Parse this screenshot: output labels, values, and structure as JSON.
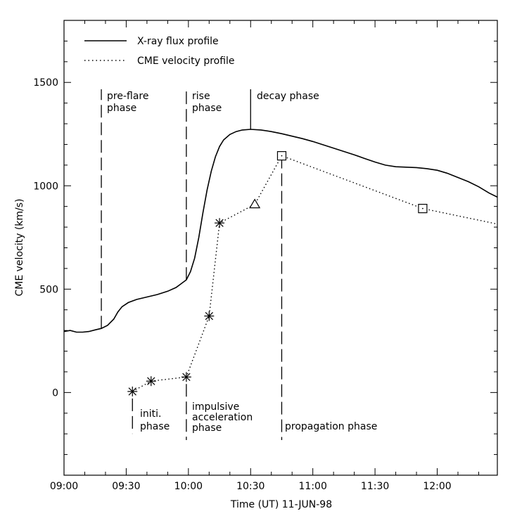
{
  "chart_data": {
    "type": "line",
    "xlabel": "Time (UT) 11-JUN-98",
    "ylabel": "CME velocity (km/s)",
    "x_tick_labels": [
      "09:00",
      "09:30",
      "10:00",
      "10:30",
      "11:00",
      "11:30",
      "12:00"
    ],
    "x_ticks_minutes": [
      0,
      30,
      60,
      90,
      120,
      150,
      180
    ],
    "xlim_minutes": [
      0,
      209
    ],
    "ylim": [
      -400,
      1800
    ],
    "y_ticks": [
      0,
      500,
      1000,
      1500
    ],
    "legend": {
      "placement": "top-left",
      "entries": [
        "X-ray flux profile",
        "CME velocity profile"
      ]
    },
    "series": [
      {
        "name": "X-ray flux profile",
        "style": "solid",
        "note": "unscaled profile drawn on the velocity axis",
        "points": [
          [
            0,
            295
          ],
          [
            3,
            300
          ],
          [
            6,
            292
          ],
          [
            9,
            292
          ],
          [
            12,
            295
          ],
          [
            15,
            303
          ],
          [
            18,
            310
          ],
          [
            21,
            325
          ],
          [
            24,
            355
          ],
          [
            26,
            390
          ],
          [
            28,
            415
          ],
          [
            31,
            435
          ],
          [
            35,
            450
          ],
          [
            40,
            462
          ],
          [
            45,
            474
          ],
          [
            50,
            490
          ],
          [
            54,
            508
          ],
          [
            57,
            530
          ],
          [
            59,
            545
          ],
          [
            61,
            585
          ],
          [
            63,
            650
          ],
          [
            65,
            750
          ],
          [
            67,
            870
          ],
          [
            69,
            980
          ],
          [
            71,
            1070
          ],
          [
            73,
            1140
          ],
          [
            75,
            1190
          ],
          [
            77,
            1222
          ],
          [
            80,
            1248
          ],
          [
            83,
            1262
          ],
          [
            86,
            1270
          ],
          [
            90,
            1273
          ],
          [
            95,
            1270
          ],
          [
            100,
            1262
          ],
          [
            105,
            1252
          ],
          [
            110,
            1240
          ],
          [
            115,
            1228
          ],
          [
            120,
            1214
          ],
          [
            125,
            1198
          ],
          [
            130,
            1182
          ],
          [
            135,
            1166
          ],
          [
            140,
            1150
          ],
          [
            145,
            1132
          ],
          [
            150,
            1115
          ],
          [
            155,
            1100
          ],
          [
            160,
            1092
          ],
          [
            165,
            1090
          ],
          [
            170,
            1088
          ],
          [
            175,
            1083
          ],
          [
            180,
            1075
          ],
          [
            185,
            1060
          ],
          [
            190,
            1040
          ],
          [
            195,
            1020
          ],
          [
            200,
            995
          ],
          [
            205,
            965
          ],
          [
            209,
            945
          ]
        ]
      },
      {
        "name": "CME velocity profile",
        "style": "dotted",
        "points": [
          [
            33,
            5
          ],
          [
            42,
            55
          ],
          [
            59,
            75
          ],
          [
            70,
            370
          ],
          [
            75,
            820
          ],
          [
            92,
            910
          ],
          [
            105,
            1145
          ],
          [
            173,
            890
          ],
          [
            209,
            815
          ]
        ],
        "markers": [
          "asterisk",
          "asterisk",
          "asterisk",
          "asterisk",
          "asterisk",
          "triangle",
          "square",
          "square",
          "none"
        ]
      }
    ],
    "markers": {
      "initi_phase_time": 33,
      "pre_flare_line_time": 18,
      "rise_line_time": 59,
      "decay_line_time": 90,
      "propagation_line_time": 105
    },
    "annotations": [
      {
        "id": "pre_flare",
        "line1": "pre-flare",
        "line2": "phase"
      },
      {
        "id": "rise",
        "line1": "rise",
        "line2": "phase"
      },
      {
        "id": "decay",
        "line1": "decay phase",
        "line2": ""
      },
      {
        "id": "initi",
        "line1": "initi.",
        "line2": "phase"
      },
      {
        "id": "impulsive",
        "line1": "impulsive",
        "line2": "acceleration",
        "line3": "phase"
      },
      {
        "id": "propagation",
        "line1": "propagation phase",
        "line2": ""
      }
    ]
  }
}
